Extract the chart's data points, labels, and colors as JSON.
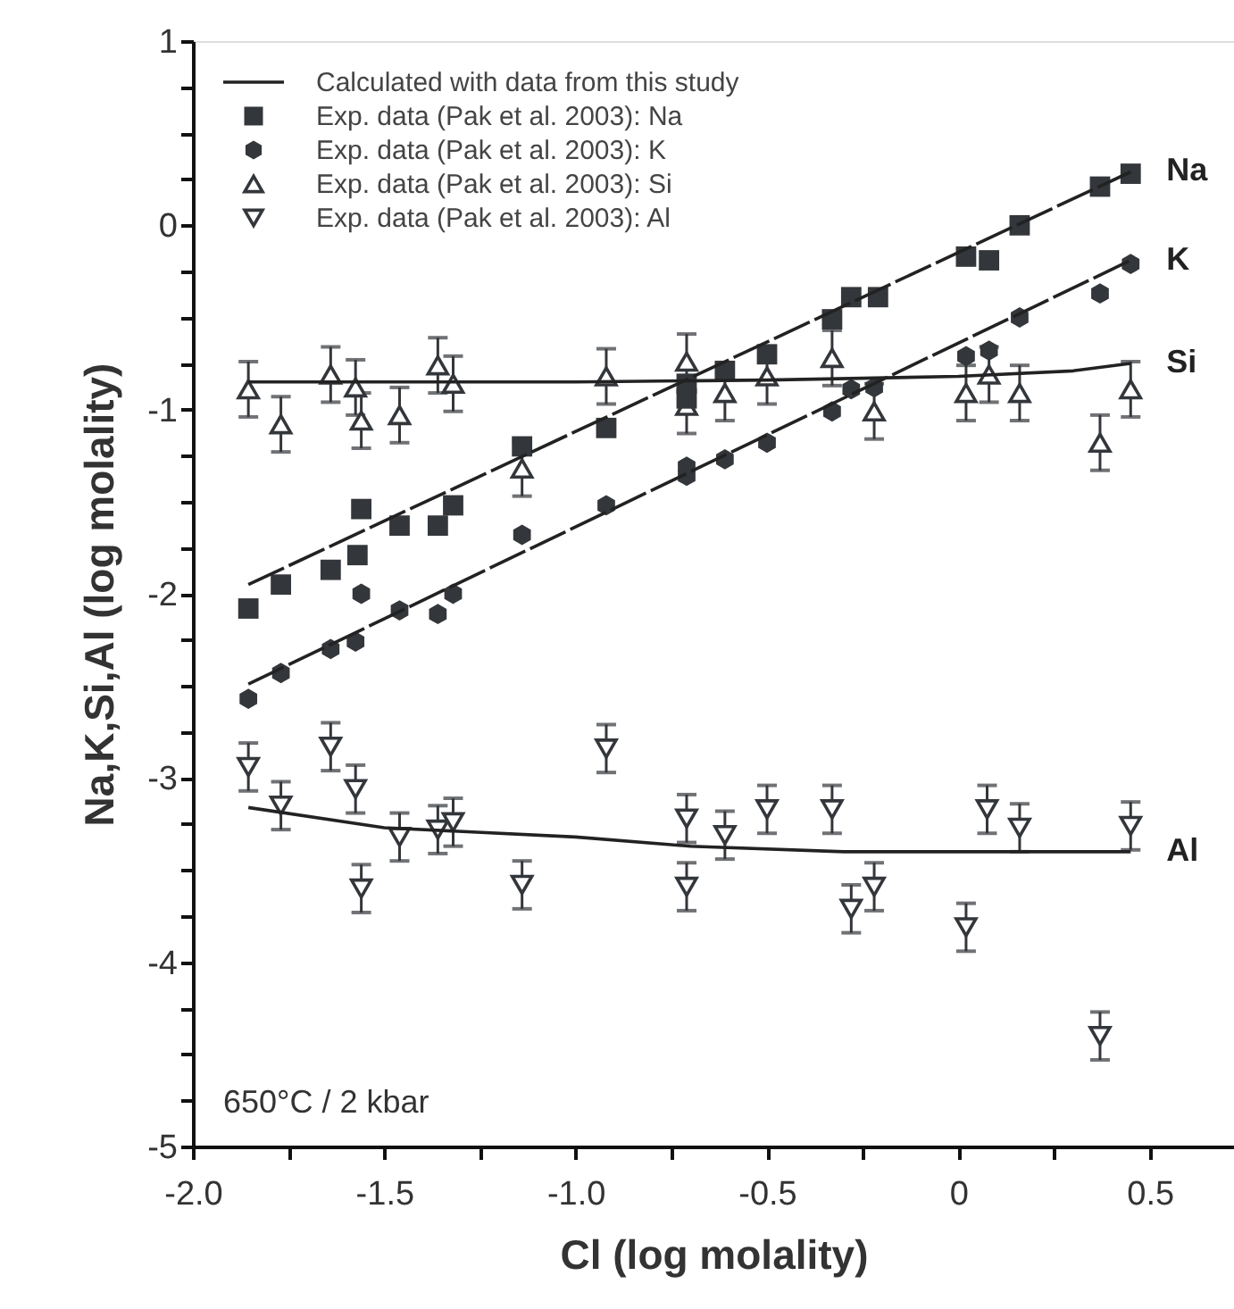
{
  "chart_data": {
    "type": "scatter",
    "xlabel": "Cl (log molality)",
    "ylabel": "Na,K,Si,Al (log molality)",
    "xlim": [
      -2.0,
      0.72
    ],
    "ylim": [
      -5,
      1
    ],
    "xticks": [
      {
        "value": -2.0,
        "label": "-2.0"
      },
      {
        "value": -1.75,
        "label": null
      },
      {
        "value": -1.5,
        "label": "-1.5"
      },
      {
        "value": -1.25,
        "label": null
      },
      {
        "value": -1.0,
        "label": "-1.0"
      },
      {
        "value": -0.75,
        "label": null
      },
      {
        "value": -0.5,
        "label": "-0.5"
      },
      {
        "value": -0.25,
        "label": null
      },
      0,
      {
        "value": 0.25,
        "label": null
      },
      0.5
    ],
    "yticks": [
      -5,
      {
        "value": -4.75,
        "label": null
      },
      {
        "value": -4.5,
        "label": null
      },
      {
        "value": -4.25,
        "label": null
      },
      -4,
      {
        "value": -3.75,
        "label": null
      },
      {
        "value": -3.5,
        "label": null
      },
      {
        "value": -3.25,
        "label": null
      },
      -3,
      {
        "value": -2.75,
        "label": null
      },
      {
        "value": -2.5,
        "label": null
      },
      {
        "value": -2.25,
        "label": null
      },
      -2,
      {
        "value": -1.75,
        "label": null
      },
      {
        "value": -1.5,
        "label": null
      },
      {
        "value": -1.25,
        "label": null
      },
      -1,
      {
        "value": -0.75,
        "label": null
      },
      {
        "value": -0.5,
        "label": null
      },
      {
        "value": -0.25,
        "label": null
      },
      0,
      {
        "value": 0.25,
        "label": null
      },
      {
        "value": 0.5,
        "label": null
      },
      {
        "value": 0.75,
        "label": null
      },
      1
    ],
    "grid": false,
    "legend": "top left",
    "annotations": [
      "Calculated with data from this study",
      "650°C / 2 kbar"
    ],
    "series": [
      {
        "name": "Na",
        "type": "line",
        "color": "#222222",
        "line_style": "dashed",
        "x": [
          -1.855,
          0.45
        ],
        "values": [
          -1.95,
          0.29
        ]
      },
      {
        "name": "K",
        "type": "line",
        "color": "#222222",
        "line_style": "dashed",
        "x": [
          -1.855,
          0.45
        ],
        "values": [
          -2.49,
          -0.19
        ]
      },
      {
        "name": "Si",
        "type": "line",
        "color": "#222222",
        "line_style": "solid",
        "x": [
          -1.855,
          -1.0,
          -0.5,
          0.0,
          0.3,
          0.45
        ],
        "values": [
          -0.85,
          -0.85,
          -0.84,
          -0.82,
          -0.79,
          -0.75
        ]
      },
      {
        "name": "Al",
        "type": "line",
        "color": "#222222",
        "line_style": "solid",
        "x": [
          -1.855,
          -1.5,
          -1.0,
          -0.7,
          -0.3,
          0.45
        ],
        "values": [
          -3.16,
          -3.27,
          -3.32,
          -3.37,
          -3.4,
          -3.4
        ]
      },
      {
        "name": "Exp. data (Pak et al. 2003): Na",
        "type": "scatter",
        "marker": "square",
        "color": "#33363a",
        "x": [
          -1.855,
          -1.77,
          -1.64,
          -1.57,
          -1.56,
          -1.46,
          -1.36,
          -1.32,
          -1.14,
          -0.92,
          -0.71,
          -0.71,
          -0.61,
          -0.5,
          -0.33,
          -0.28,
          -0.21,
          0.02,
          0.08,
          0.16,
          0.37,
          0.45
        ],
        "values": [
          -2.08,
          -1.95,
          -1.87,
          -1.79,
          -1.54,
          -1.63,
          -1.63,
          -1.52,
          -1.2,
          -1.1,
          -0.86,
          -0.94,
          -0.79,
          -0.7,
          -0.51,
          -0.39,
          -0.39,
          -0.17,
          -0.19,
          0.0,
          0.21,
          0.28
        ]
      },
      {
        "name": "Exp. data (Pak et al. 2003): K",
        "type": "scatter",
        "color": "#33363a",
        "x": [
          -1.855,
          -1.77,
          -1.64,
          -1.575,
          -1.56,
          -1.46,
          -1.36,
          -1.32,
          -1.14,
          -0.92,
          -0.71,
          -0.71,
          -0.61,
          -0.5,
          -0.33,
          -0.28,
          -0.22,
          0.02,
          0.08,
          0.16,
          0.37,
          0.45
        ],
        "values": [
          -2.57,
          -2.43,
          -2.3,
          -2.26,
          -2.0,
          -2.09,
          -2.11,
          -2.0,
          -1.68,
          -1.52,
          -1.31,
          -1.36,
          -1.27,
          -1.18,
          -1.01,
          -0.89,
          -0.88,
          -0.71,
          -0.68,
          -0.5,
          -0.37,
          -0.21
        ]
      },
      {
        "name": "Exp. data (Pak et al. 2003): Si",
        "type": "scatter",
        "marker": "triangle",
        "color": "#33363a",
        "x": [
          -1.855,
          -1.77,
          -1.64,
          -1.575,
          -1.56,
          -1.46,
          -1.36,
          -1.32,
          -1.14,
          -0.92,
          -0.71,
          -0.71,
          -0.61,
          -0.5,
          -0.33,
          -0.22,
          0.02,
          0.08,
          0.16,
          0.37,
          0.45
        ],
        "values": [
          -0.89,
          -1.08,
          -0.81,
          -0.88,
          -1.06,
          -1.03,
          -0.76,
          -0.86,
          -1.32,
          -0.82,
          -0.74,
          -0.98,
          -0.91,
          -0.82,
          -0.72,
          -1.01,
          -0.91,
          -0.81,
          -0.91,
          -1.18,
          -0.89
        ],
        "errors": [
          0.15,
          0.15,
          0.15,
          0.15,
          0.15,
          0.15,
          0.15,
          0.15,
          0.15,
          0.15,
          0.15,
          0.15,
          0.15,
          0.15,
          0.15,
          0.15,
          0.15,
          0.15,
          0.15,
          0.15,
          0.15
        ]
      },
      {
        "name": "Exp. data (Pak et al. 2003): Al",
        "type": "scatter",
        "marker": "triangle-down",
        "color": "#33363a",
        "x": [
          -1.855,
          -1.77,
          -1.64,
          -1.575,
          -1.56,
          -1.46,
          -1.36,
          -1.32,
          -1.14,
          -0.92,
          -0.71,
          -0.71,
          -0.61,
          -0.5,
          -0.33,
          -0.28,
          -0.22,
          0.02,
          0.075,
          0.16,
          0.37,
          0.45
        ],
        "values": [
          -2.94,
          -3.15,
          -2.83,
          -3.06,
          -3.6,
          -3.32,
          -3.28,
          -3.24,
          -3.58,
          -2.84,
          -3.22,
          -3.59,
          -3.31,
          -3.17,
          -3.17,
          -3.71,
          -3.59,
          -3.81,
          -3.17,
          -3.27,
          -4.4,
          -3.26
        ],
        "errors": [
          0.13,
          0.13,
          0.13,
          0.13,
          0.13,
          0.13,
          0.13,
          0.13,
          0.13,
          0.13,
          0.13,
          0.13,
          0.13,
          0.13,
          0.13,
          0.13,
          0.13,
          0.13,
          0.13,
          0.13,
          0.13,
          0.13
        ]
      }
    ]
  }
}
